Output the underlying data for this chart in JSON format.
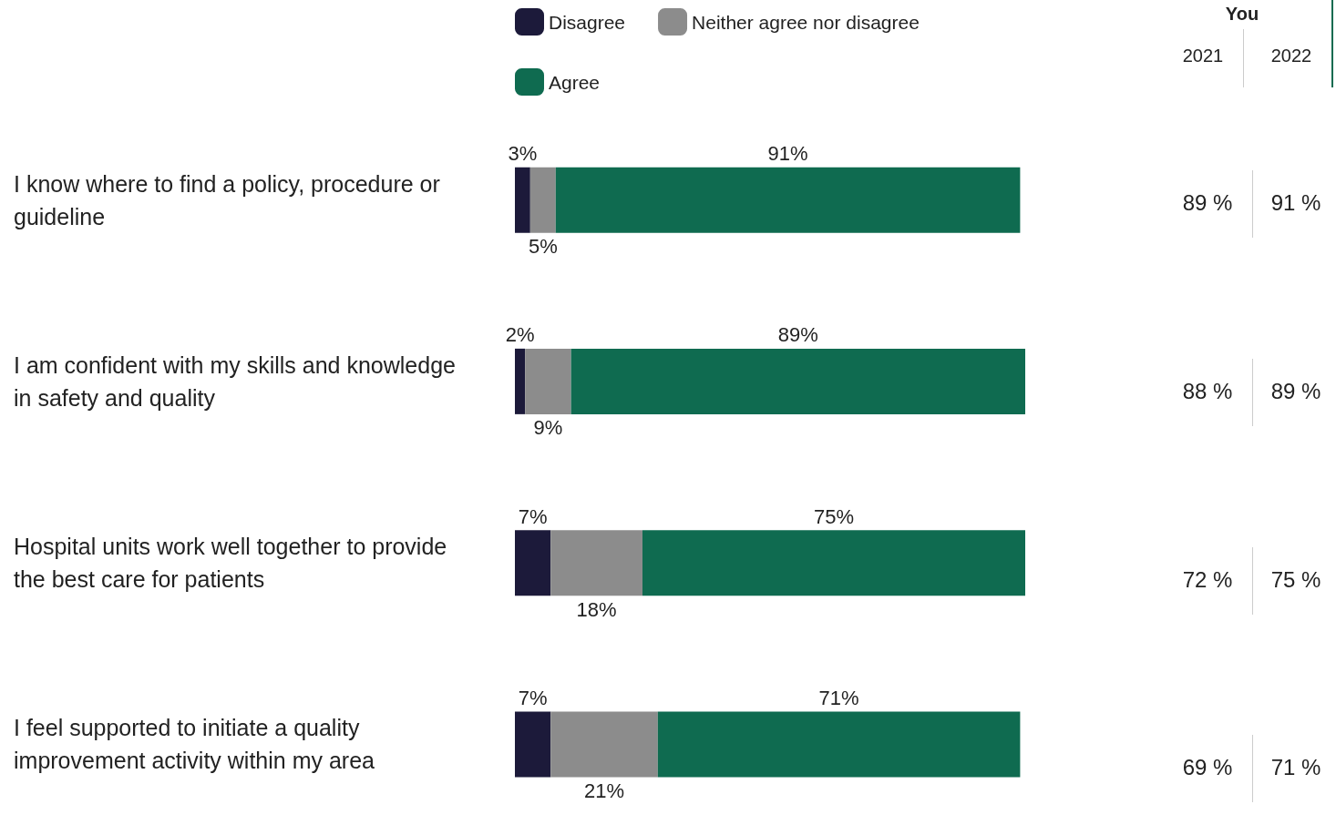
{
  "chart_data": [
    {
      "type": "bar",
      "orientation": "horizontal",
      "stacked": true,
      "legend": "top",
      "categories": [
        "I know where to find a policy, procedure or guideline",
        "I am confident with my skills and knowledge in safety and quality",
        "Hospital units work well together to provide the best care for patients",
        "I feel supported to initiate a quality improvement activity within my area"
      ],
      "series": [
        {
          "name": "Disagree",
          "color": "#1c1a3a",
          "values": [
            3,
            2,
            7,
            7
          ],
          "value_labels": [
            "3%",
            "2%",
            "7%",
            "7%"
          ]
        },
        {
          "name": "Neither agree nor disagree",
          "color": "#8c8c8c",
          "values": [
            5,
            9,
            18,
            21
          ],
          "value_labels": [
            "5%",
            "9%",
            "18%",
            "21%"
          ]
        },
        {
          "name": "Agree",
          "color": "#0f6b50",
          "values": [
            91,
            89,
            75,
            71
          ],
          "value_labels": [
            "91%",
            "89%",
            "75%",
            "71%"
          ]
        }
      ]
    },
    {
      "type": "other",
      "title": "You",
      "categories": [
        "2021",
        "2022"
      ],
      "cell_labels": [
        [
          "89 %",
          "91 %"
        ],
        [
          "88 %",
          "89 %"
        ],
        [
          "72 %",
          "75 %"
        ],
        [
          "69 %",
          "71 %"
        ]
      ]
    }
  ]
}
